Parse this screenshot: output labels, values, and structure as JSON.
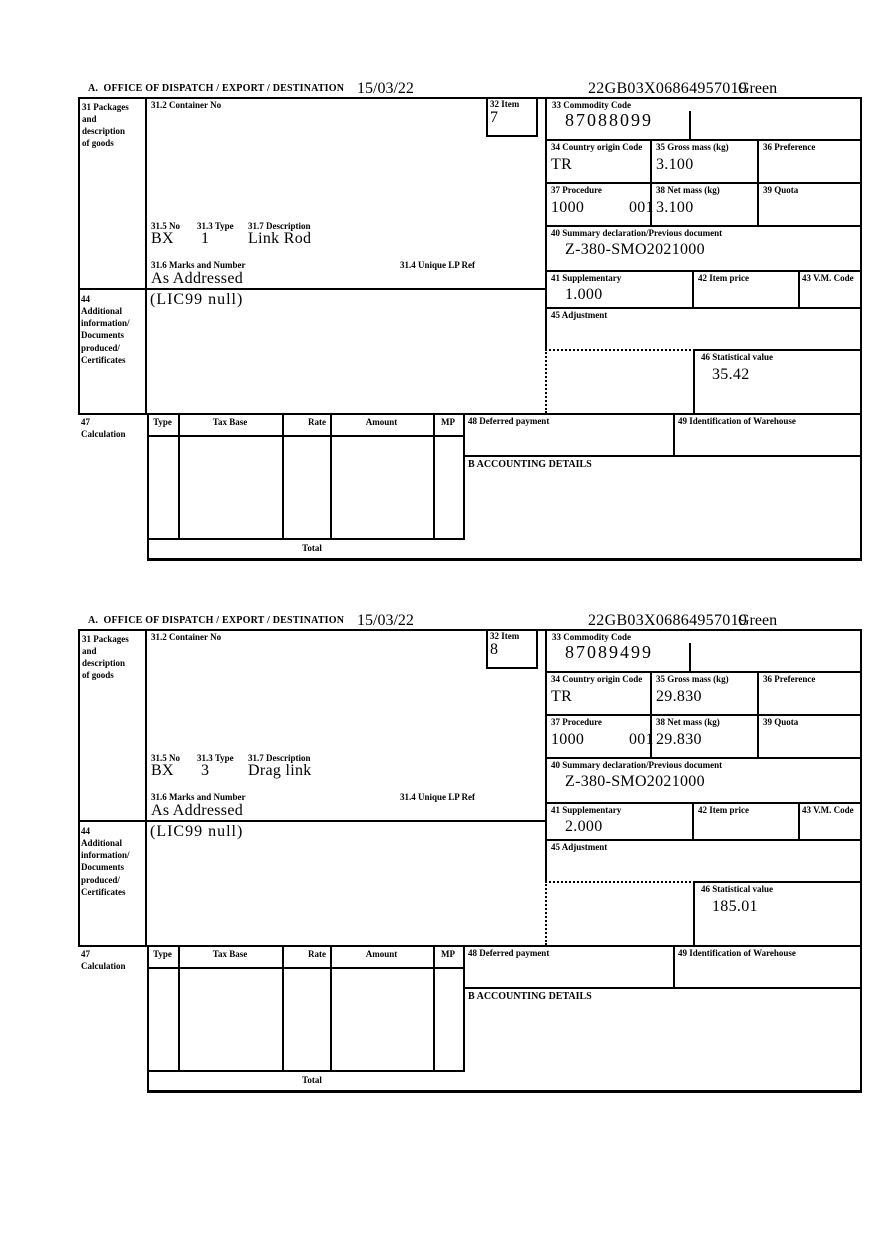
{
  "document": {
    "header": {
      "box_a": "A.  OFFICE OF DISPATCH / EXPORT / DESTINATION",
      "date": "15/03/22",
      "mrn": "22GB03X06864957019",
      "routing": "Green"
    },
    "labels": {
      "box31": "31 Packages\nand\ndescription\nof goods",
      "box31_2": "31.2 Container No",
      "box31_5": "31.5 No",
      "box31_3": "31.3 Type",
      "box31_7": "31.7 Description",
      "box31_6": "31.6 Marks and Number",
      "box31_4": "31.4 Unique LP Ref",
      "box32": "32 Item",
      "box33": "33 Commodity Code",
      "box34": "34 Country origin Code",
      "box35": "35 Gross mass (kg)",
      "box36": "36 Preference",
      "box37": "37 Procedure",
      "box38": "38 Net mass (kg)",
      "box39": "39 Quota",
      "box40": "40 Summary declaration/Previous document",
      "box41": "41 Supplementary",
      "box42": "42 Item price",
      "box43": "43 V.M. Code",
      "box44": "44\nAdditional\ninformation/\nDocuments\nproduced/\nCertificates",
      "box45": "45 Adjustment",
      "box46": "46 Statistical value",
      "box47": "47\nCalculation",
      "box48": "48 Deferred payment",
      "box49": "49 Identification of Warehouse",
      "box_b": "B ACCOUNTING DETAILS",
      "calc_headers": [
        "Type",
        "Tax Base",
        "Rate",
        "Amount",
        "MP"
      ],
      "total_label": "Total"
    },
    "items": [
      {
        "item_no": "7",
        "commodity_code": "87088099",
        "country_origin_code": "TR",
        "gross_mass_kg": "3.100",
        "procedure_code": "1000",
        "procedure_code_2": "001",
        "net_mass_kg": "3.100",
        "previous_document": "Z-380-SMO2021000",
        "packages_no": "BX",
        "packages_type": "1",
        "goods_description": "Link Rod",
        "marks_and_numbers": "As Addressed",
        "supplementary_units": "1.000",
        "additional_information": "(LIC99 null)",
        "statistical_value": "35.42"
      },
      {
        "item_no": "8",
        "commodity_code": "87089499",
        "country_origin_code": "TR",
        "gross_mass_kg": "29.830",
        "procedure_code": "1000",
        "procedure_code_2": "001",
        "net_mass_kg": "29.830",
        "previous_document": "Z-380-SMO2021000",
        "packages_no": "BX",
        "packages_type": "3",
        "goods_description": "Drag link",
        "marks_and_numbers": "As Addressed",
        "supplementary_units": "2.000",
        "additional_information": "(LIC99 null)",
        "statistical_value": "185.01"
      }
    ]
  }
}
